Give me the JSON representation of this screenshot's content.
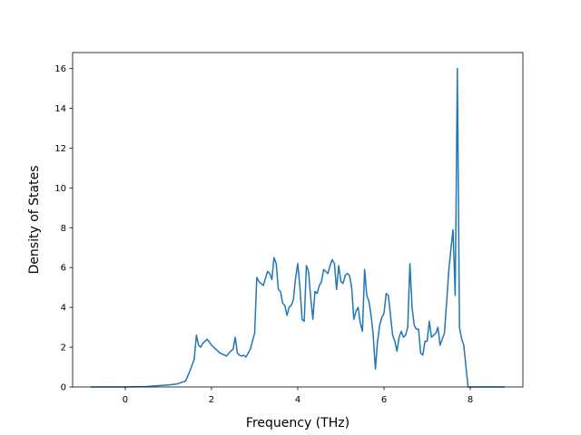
{
  "chart_data": {
    "type": "line",
    "title": "",
    "xlabel": "Frequency (THz)",
    "ylabel": "Density of States",
    "xlim": [
      -1.22,
      9.22
    ],
    "ylim": [
      0,
      16.8
    ],
    "xticks": [
      0,
      2,
      4,
      6,
      8
    ],
    "yticks": [
      0,
      2,
      4,
      6,
      8,
      10,
      12,
      14,
      16
    ],
    "grid": false,
    "legend": "none",
    "series": [
      {
        "color": "#1f77b4",
        "x": [
          -0.8,
          -0.5,
          0.0,
          0.5,
          1.0,
          1.2,
          1.4,
          1.5,
          1.6,
          1.65,
          1.7,
          1.75,
          1.8,
          1.9,
          2.0,
          2.1,
          2.2,
          2.3,
          2.35,
          2.4,
          2.5,
          2.55,
          2.6,
          2.65,
          2.7,
          2.75,
          2.8,
          2.9,
          3.0,
          3.05,
          3.1,
          3.15,
          3.2,
          3.3,
          3.35,
          3.4,
          3.45,
          3.5,
          3.55,
          3.6,
          3.65,
          3.7,
          3.75,
          3.8,
          3.85,
          3.9,
          3.95,
          4.0,
          4.05,
          4.1,
          4.15,
          4.2,
          4.25,
          4.3,
          4.35,
          4.4,
          4.45,
          4.5,
          4.55,
          4.6,
          4.65,
          4.7,
          4.75,
          4.8,
          4.85,
          4.9,
          4.95,
          5.0,
          5.05,
          5.1,
          5.15,
          5.2,
          5.25,
          5.3,
          5.35,
          5.4,
          5.45,
          5.5,
          5.55,
          5.6,
          5.65,
          5.7,
          5.75,
          5.8,
          5.85,
          5.9,
          5.95,
          6.0,
          6.05,
          6.1,
          6.15,
          6.2,
          6.25,
          6.3,
          6.35,
          6.4,
          6.45,
          6.5,
          6.55,
          6.6,
          6.65,
          6.7,
          6.75,
          6.8,
          6.85,
          6.9,
          6.95,
          7.0,
          7.05,
          7.1,
          7.15,
          7.2,
          7.25,
          7.3,
          7.35,
          7.4,
          7.45,
          7.5,
          7.55,
          7.6,
          7.65,
          7.67,
          7.7,
          7.75,
          7.8,
          7.85,
          7.9,
          7.95,
          8.0,
          8.3,
          8.8
        ],
        "y": [
          0,
          0,
          0,
          0.02,
          0.1,
          0.15,
          0.3,
          0.8,
          1.4,
          2.6,
          2.1,
          2.0,
          2.2,
          2.4,
          2.1,
          1.9,
          1.7,
          1.6,
          1.55,
          1.7,
          1.9,
          2.5,
          1.7,
          1.6,
          1.55,
          1.6,
          1.5,
          1.9,
          2.7,
          5.5,
          5.3,
          5.2,
          5.1,
          5.8,
          5.7,
          5.4,
          6.5,
          6.2,
          4.9,
          4.8,
          4.2,
          4.1,
          3.6,
          4.0,
          4.1,
          4.4,
          5.5,
          6.2,
          5.0,
          3.4,
          3.3,
          6.1,
          5.8,
          4.5,
          3.4,
          4.8,
          4.7,
          5.1,
          5.3,
          5.9,
          5.8,
          5.7,
          6.1,
          6.4,
          6.2,
          4.9,
          6.1,
          5.3,
          5.2,
          5.6,
          5.7,
          5.6,
          5.0,
          3.4,
          3.8,
          4.0,
          3.2,
          2.8,
          5.9,
          4.6,
          4.3,
          3.6,
          2.6,
          0.9,
          2.3,
          3.1,
          3.5,
          3.7,
          4.7,
          4.6,
          3.6,
          2.6,
          2.3,
          1.8,
          2.5,
          2.8,
          2.5,
          2.6,
          3.0,
          6.2,
          4.0,
          3.1,
          2.9,
          2.9,
          1.7,
          1.6,
          2.3,
          2.3,
          3.3,
          2.5,
          2.6,
          2.7,
          3.0,
          2.1,
          2.4,
          2.7,
          4.2,
          5.8,
          6.9,
          7.9,
          4.6,
          9.0,
          16.0,
          3.0,
          2.4,
          2.1,
          1.0,
          0,
          0,
          0,
          0
        ]
      }
    ]
  }
}
